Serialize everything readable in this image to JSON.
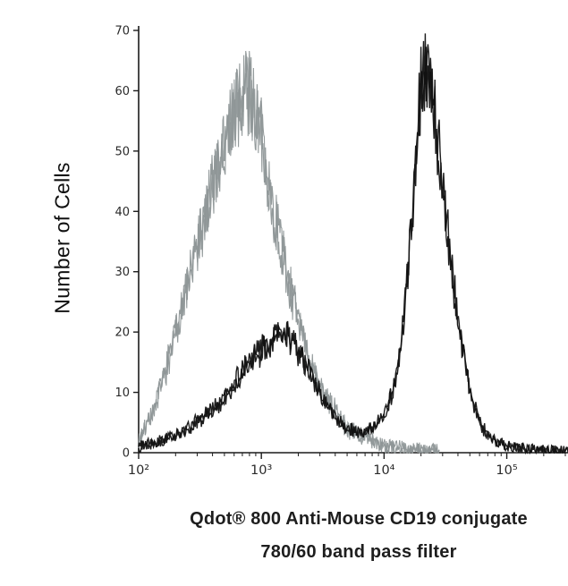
{
  "chart_data": {
    "type": "histogram-overlay",
    "title": "",
    "ylabel": "Number of Cells",
    "caption_line1": "Qdot® 800 Anti-Mouse CD19 conjugate",
    "caption_line2": "780/60 band pass filter",
    "x_scale": "log",
    "xlim_log10": [
      2.0,
      5.55
    ],
    "ylim": [
      0,
      70
    ],
    "yticks": [
      0,
      10,
      20,
      30,
      40,
      50,
      60,
      70
    ],
    "xticks": [
      {
        "log10": 2,
        "label": "10²"
      },
      {
        "log10": 3,
        "label": "10³"
      },
      {
        "log10": 4,
        "label": "10⁴"
      },
      {
        "log10": 5,
        "label": "10⁵"
      }
    ],
    "grid": false,
    "legend": "none",
    "axis_color": "#1c1c1c",
    "series": [
      {
        "name": "unstained-control",
        "color": "#8e9697",
        "stroke_width": 1.1,
        "passes": 2,
        "seed": 7,
        "noise": 0.12,
        "noise_abs": 1.3,
        "envelope": [
          [
            2.0,
            2
          ],
          [
            2.05,
            4
          ],
          [
            2.1,
            6
          ],
          [
            2.2,
            12
          ],
          [
            2.3,
            20
          ],
          [
            2.4,
            28
          ],
          [
            2.5,
            36
          ],
          [
            2.6,
            44
          ],
          [
            2.7,
            52
          ],
          [
            2.8,
            58
          ],
          [
            2.88,
            60
          ],
          [
            2.95,
            58
          ],
          [
            3.0,
            52
          ],
          [
            3.05,
            46
          ],
          [
            3.1,
            40
          ],
          [
            3.2,
            30
          ],
          [
            3.3,
            22
          ],
          [
            3.4,
            15
          ],
          [
            3.5,
            10
          ],
          [
            3.6,
            7
          ],
          [
            3.7,
            4
          ],
          [
            3.8,
            3
          ],
          [
            3.9,
            2
          ],
          [
            4.0,
            1
          ],
          [
            4.2,
            0.6
          ],
          [
            4.45,
            0.3
          ]
        ]
      },
      {
        "name": "cd19-stained",
        "color": "#111111",
        "stroke_width": 1.4,
        "passes": 2,
        "seed": 13,
        "noise": 0.12,
        "noise_abs": 0.9,
        "envelope": [
          [
            2.0,
            1
          ],
          [
            2.2,
            2
          ],
          [
            2.4,
            4
          ],
          [
            2.6,
            7
          ],
          [
            2.7,
            9
          ],
          [
            2.8,
            12
          ],
          [
            2.9,
            15
          ],
          [
            3.0,
            17
          ],
          [
            3.1,
            19
          ],
          [
            3.17,
            20
          ],
          [
            3.25,
            19
          ],
          [
            3.3,
            17
          ],
          [
            3.4,
            13
          ],
          [
            3.5,
            9
          ],
          [
            3.6,
            6
          ],
          [
            3.7,
            4
          ],
          [
            3.8,
            3.5
          ],
          [
            3.9,
            4
          ],
          [
            4.0,
            6
          ],
          [
            4.1,
            12
          ],
          [
            4.15,
            20
          ],
          [
            4.2,
            32
          ],
          [
            4.25,
            45
          ],
          [
            4.3,
            60
          ],
          [
            4.34,
            63
          ],
          [
            4.4,
            58
          ],
          [
            4.45,
            50
          ],
          [
            4.5,
            40
          ],
          [
            4.6,
            22
          ],
          [
            4.7,
            10
          ],
          [
            4.8,
            4
          ],
          [
            4.9,
            2
          ],
          [
            5.0,
            1
          ],
          [
            5.3,
            0.4
          ],
          [
            5.55,
            0.3
          ]
        ]
      }
    ]
  }
}
